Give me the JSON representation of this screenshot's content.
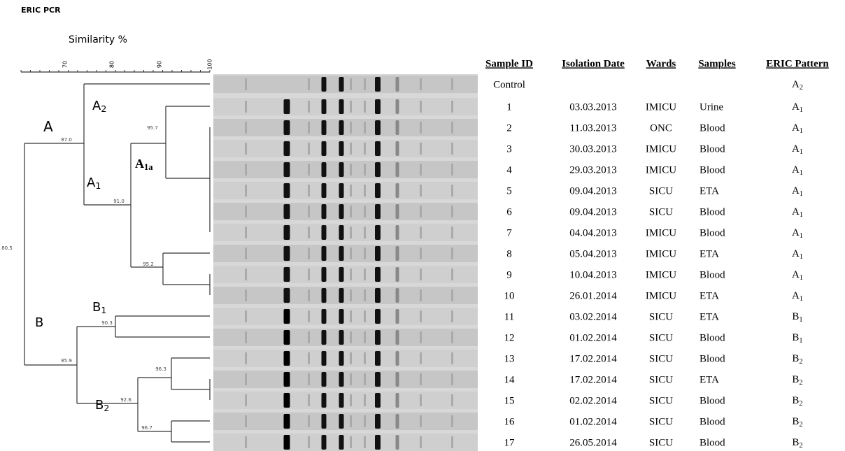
{
  "figure": {
    "title": "ERIC PCR",
    "axis_label": "Similarity %",
    "axis_ticks": [
      "70",
      "80",
      "90",
      "100"
    ],
    "node_values": [
      "87.0",
      "95.7",
      "91.0",
      "80.5",
      "95.2",
      "90.3",
      "85.9",
      "96.3",
      "92.6",
      "96.7"
    ],
    "clusters": [
      {
        "main": "A"
      },
      {
        "main": "A",
        "sub": "2"
      },
      {
        "main": "A",
        "sub": "1"
      },
      {
        "main": "A",
        "sub": "1a"
      },
      {
        "main": "B"
      },
      {
        "main": "B",
        "sub": "1"
      },
      {
        "main": "B",
        "sub": "2"
      }
    ]
  },
  "table": {
    "headers": [
      "Sample ID",
      "Isolation Date",
      "Wards",
      "Samples",
      "ERIC Pattern"
    ],
    "rows": [
      {
        "id": "Control",
        "pattern": {
          "main": "A",
          "sub": "2"
        }
      },
      {
        "id": "1",
        "date": "03.03.2013",
        "ward": "IMICU",
        "sample": "Urine",
        "pattern": {
          "main": "A",
          "sub": "1"
        }
      },
      {
        "id": "2",
        "date": "11.03.2013",
        "ward": "ONC",
        "sample": "Blood",
        "pattern": {
          "main": "A",
          "sub": "1"
        }
      },
      {
        "id": "3",
        "date": "30.03.2013",
        "ward": "IMICU",
        "sample": "Blood",
        "pattern": {
          "main": "A",
          "sub": "1"
        }
      },
      {
        "id": "4",
        "date": "29.03.2013",
        "ward": "IMICU",
        "sample": "Blood",
        "pattern": {
          "main": "A",
          "sub": "1"
        }
      },
      {
        "id": "5",
        "date": "09.04.2013",
        "ward": "SICU",
        "sample": "ETA",
        "pattern": {
          "main": "A",
          "sub": "1"
        }
      },
      {
        "id": "6",
        "date": "09.04.2013",
        "ward": "SICU",
        "sample": "Blood",
        "pattern": {
          "main": "A",
          "sub": "1"
        }
      },
      {
        "id": "7",
        "date": "04.04.2013",
        "ward": "IMICU",
        "sample": "Blood",
        "pattern": {
          "main": "A",
          "sub": "1"
        }
      },
      {
        "id": "8",
        "date": "05.04.2013",
        "ward": "IMICU",
        "sample": "ETA",
        "pattern": {
          "main": "A",
          "sub": "1"
        }
      },
      {
        "id": "9",
        "date": "10.04.2013",
        "ward": "IMICU",
        "sample": "Blood",
        "pattern": {
          "main": "A",
          "sub": "1"
        }
      },
      {
        "id": "10",
        "date": "26.01.2014",
        "ward": "IMICU",
        "sample": "ETA",
        "pattern": {
          "main": "A",
          "sub": "1"
        }
      },
      {
        "id": "11",
        "date": "03.02.2014",
        "ward": "SICU",
        "sample": "ETA",
        "pattern": {
          "main": "B",
          "sub": "1"
        }
      },
      {
        "id": "12",
        "date": "01.02.2014",
        "ward": "SICU",
        "sample": "Blood",
        "pattern": {
          "main": "B",
          "sub": "1"
        }
      },
      {
        "id": "13",
        "date": "17.02.2014",
        "ward": "SICU",
        "sample": "Blood",
        "pattern": {
          "main": "B",
          "sub": "2"
        }
      },
      {
        "id": "14",
        "date": "17.02.2014",
        "ward": "SICU",
        "sample": "ETA",
        "pattern": {
          "main": "B",
          "sub": "2"
        }
      },
      {
        "id": "15",
        "date": "02.02.2014",
        "ward": "SICU",
        "sample": "Blood",
        "pattern": {
          "main": "B",
          "sub": "2"
        }
      },
      {
        "id": "16",
        "date": "01.02.2014",
        "ward": "SICU",
        "sample": "Blood",
        "pattern": {
          "main": "B",
          "sub": "2"
        }
      },
      {
        "id": "17",
        "date": "26.05.2014",
        "ward": "SICU",
        "sample": "Blood",
        "pattern": {
          "main": "B",
          "sub": "2"
        }
      }
    ]
  }
}
